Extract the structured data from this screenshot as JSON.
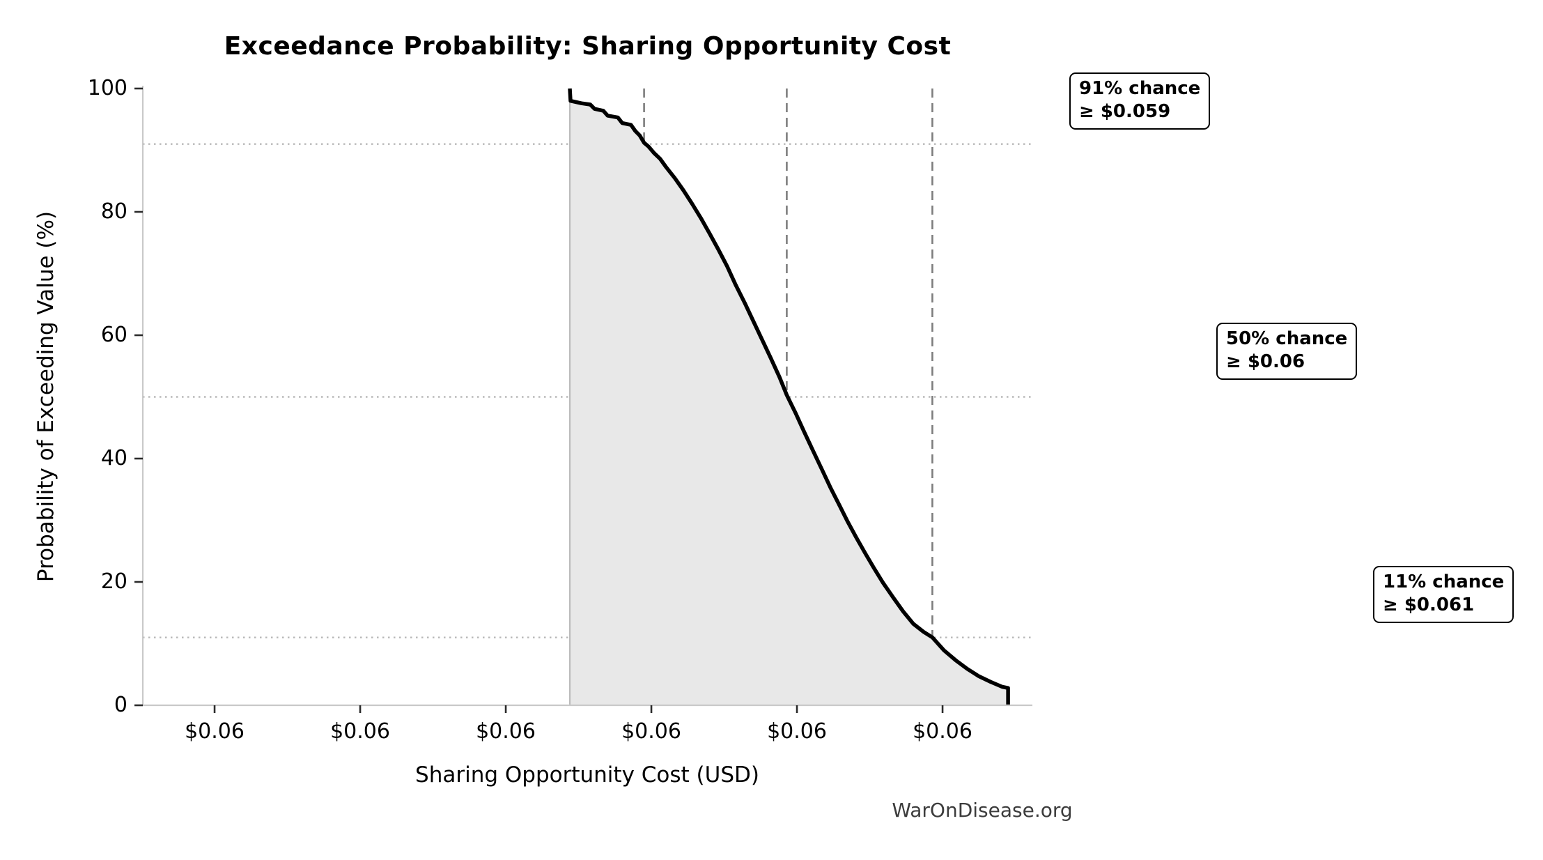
{
  "title": "Exceedance Probability: Sharing Opportunity Cost",
  "watermark": "WarOnDisease.org",
  "axes": {
    "xlabel": "Sharing Opportunity Cost (USD)",
    "ylabel": "Probability of Exceeding Value (%)",
    "x_tick_labels": [
      "$0.06",
      "$0.06",
      "$0.06",
      "$0.06",
      "$0.06",
      "$0.06"
    ],
    "y_tick_labels": [
      "0",
      "20",
      "40",
      "60",
      "80",
      "100"
    ]
  },
  "annotations": [
    {
      "line1": "91% chance",
      "line2": "≥ $0.059"
    },
    {
      "line1": "50% chance",
      "line2": "≥ $0.06"
    },
    {
      "line1": "11% chance",
      "line2": "≥ $0.061"
    }
  ],
  "chart_data": {
    "type": "line",
    "title": "Exceedance Probability: Sharing Opportunity Cost",
    "xlabel": "Sharing Opportunity Cost (USD)",
    "ylabel": "Probability of Exceeding Value (%)",
    "xlim": [
      0.055507,
      0.061617
    ],
    "ylim": [
      0,
      100
    ],
    "x_ticks": [
      0.056,
      0.057,
      0.058,
      0.059,
      0.06,
      0.061
    ],
    "y_ticks": [
      0,
      20,
      40,
      60,
      80,
      100
    ],
    "grid": "horizontal dotted lines at quantile probabilities; vertical dashed lines at quantile values",
    "legend": "none",
    "fill_under_curve": true,
    "quantiles": [
      {
        "probability_pct": 91,
        "value_label": "$0.059",
        "value_usd": 0.05895
      },
      {
        "probability_pct": 50,
        "value_label": "$0.06",
        "value_usd": 0.05993
      },
      {
        "probability_pct": 11,
        "value_label": "$0.061",
        "value_usd": 0.06093
      }
    ],
    "curve": [
      [
        0.05844,
        100.0
      ],
      [
        0.058445,
        98.0
      ],
      [
        0.05852,
        97.6
      ],
      [
        0.05858,
        97.4
      ],
      [
        0.05861,
        96.7
      ],
      [
        0.05867,
        96.4
      ],
      [
        0.0587,
        95.6
      ],
      [
        0.05877,
        95.3
      ],
      [
        0.0588,
        94.4
      ],
      [
        0.05886,
        94.1
      ],
      [
        0.05889,
        93.1
      ],
      [
        0.05892,
        92.4
      ],
      [
        0.05895,
        91.2
      ],
      [
        0.05898,
        90.6
      ],
      [
        0.05902,
        89.5
      ],
      [
        0.05906,
        88.6
      ],
      [
        0.0591,
        87.3
      ],
      [
        0.05916,
        85.5
      ],
      [
        0.05922,
        83.5
      ],
      [
        0.05928,
        81.3
      ],
      [
        0.05934,
        79.0
      ],
      [
        0.0594,
        76.5
      ],
      [
        0.05946,
        73.9
      ],
      [
        0.05952,
        71.2
      ],
      [
        0.05958,
        68.1
      ],
      [
        0.05964,
        65.3
      ],
      [
        0.0597,
        62.3
      ],
      [
        0.05976,
        59.3
      ],
      [
        0.05982,
        56.3
      ],
      [
        0.05988,
        53.2
      ],
      [
        0.05993,
        50.3
      ],
      [
        0.05999,
        47.4
      ],
      [
        0.06005,
        44.3
      ],
      [
        0.06011,
        41.3
      ],
      [
        0.06017,
        38.3
      ],
      [
        0.06023,
        35.3
      ],
      [
        0.06029,
        32.5
      ],
      [
        0.06035,
        29.7
      ],
      [
        0.06041,
        27.1
      ],
      [
        0.06047,
        24.6
      ],
      [
        0.06053,
        22.2
      ],
      [
        0.06059,
        19.9
      ],
      [
        0.06066,
        17.5
      ],
      [
        0.06073,
        15.2
      ],
      [
        0.0608,
        13.2
      ],
      [
        0.06087,
        11.9
      ],
      [
        0.06093,
        11.0
      ],
      [
        0.06101,
        8.9
      ],
      [
        0.06109,
        7.3
      ],
      [
        0.06117,
        5.9
      ],
      [
        0.06125,
        4.7
      ],
      [
        0.06133,
        3.8
      ],
      [
        0.06141,
        3.0
      ],
      [
        0.06145,
        2.8
      ],
      [
        0.06145,
        0.0
      ]
    ],
    "colors": {
      "line": "#000000",
      "fill": "#e8e8e8",
      "fill_edge": "#ababab",
      "grid_dotted": "#b8b8b8",
      "quantile_dashed": "#7d7d7d",
      "spine": "#c9c9c9",
      "tick": "#2b2b2b",
      "watermark": "#3c3c3c"
    }
  }
}
